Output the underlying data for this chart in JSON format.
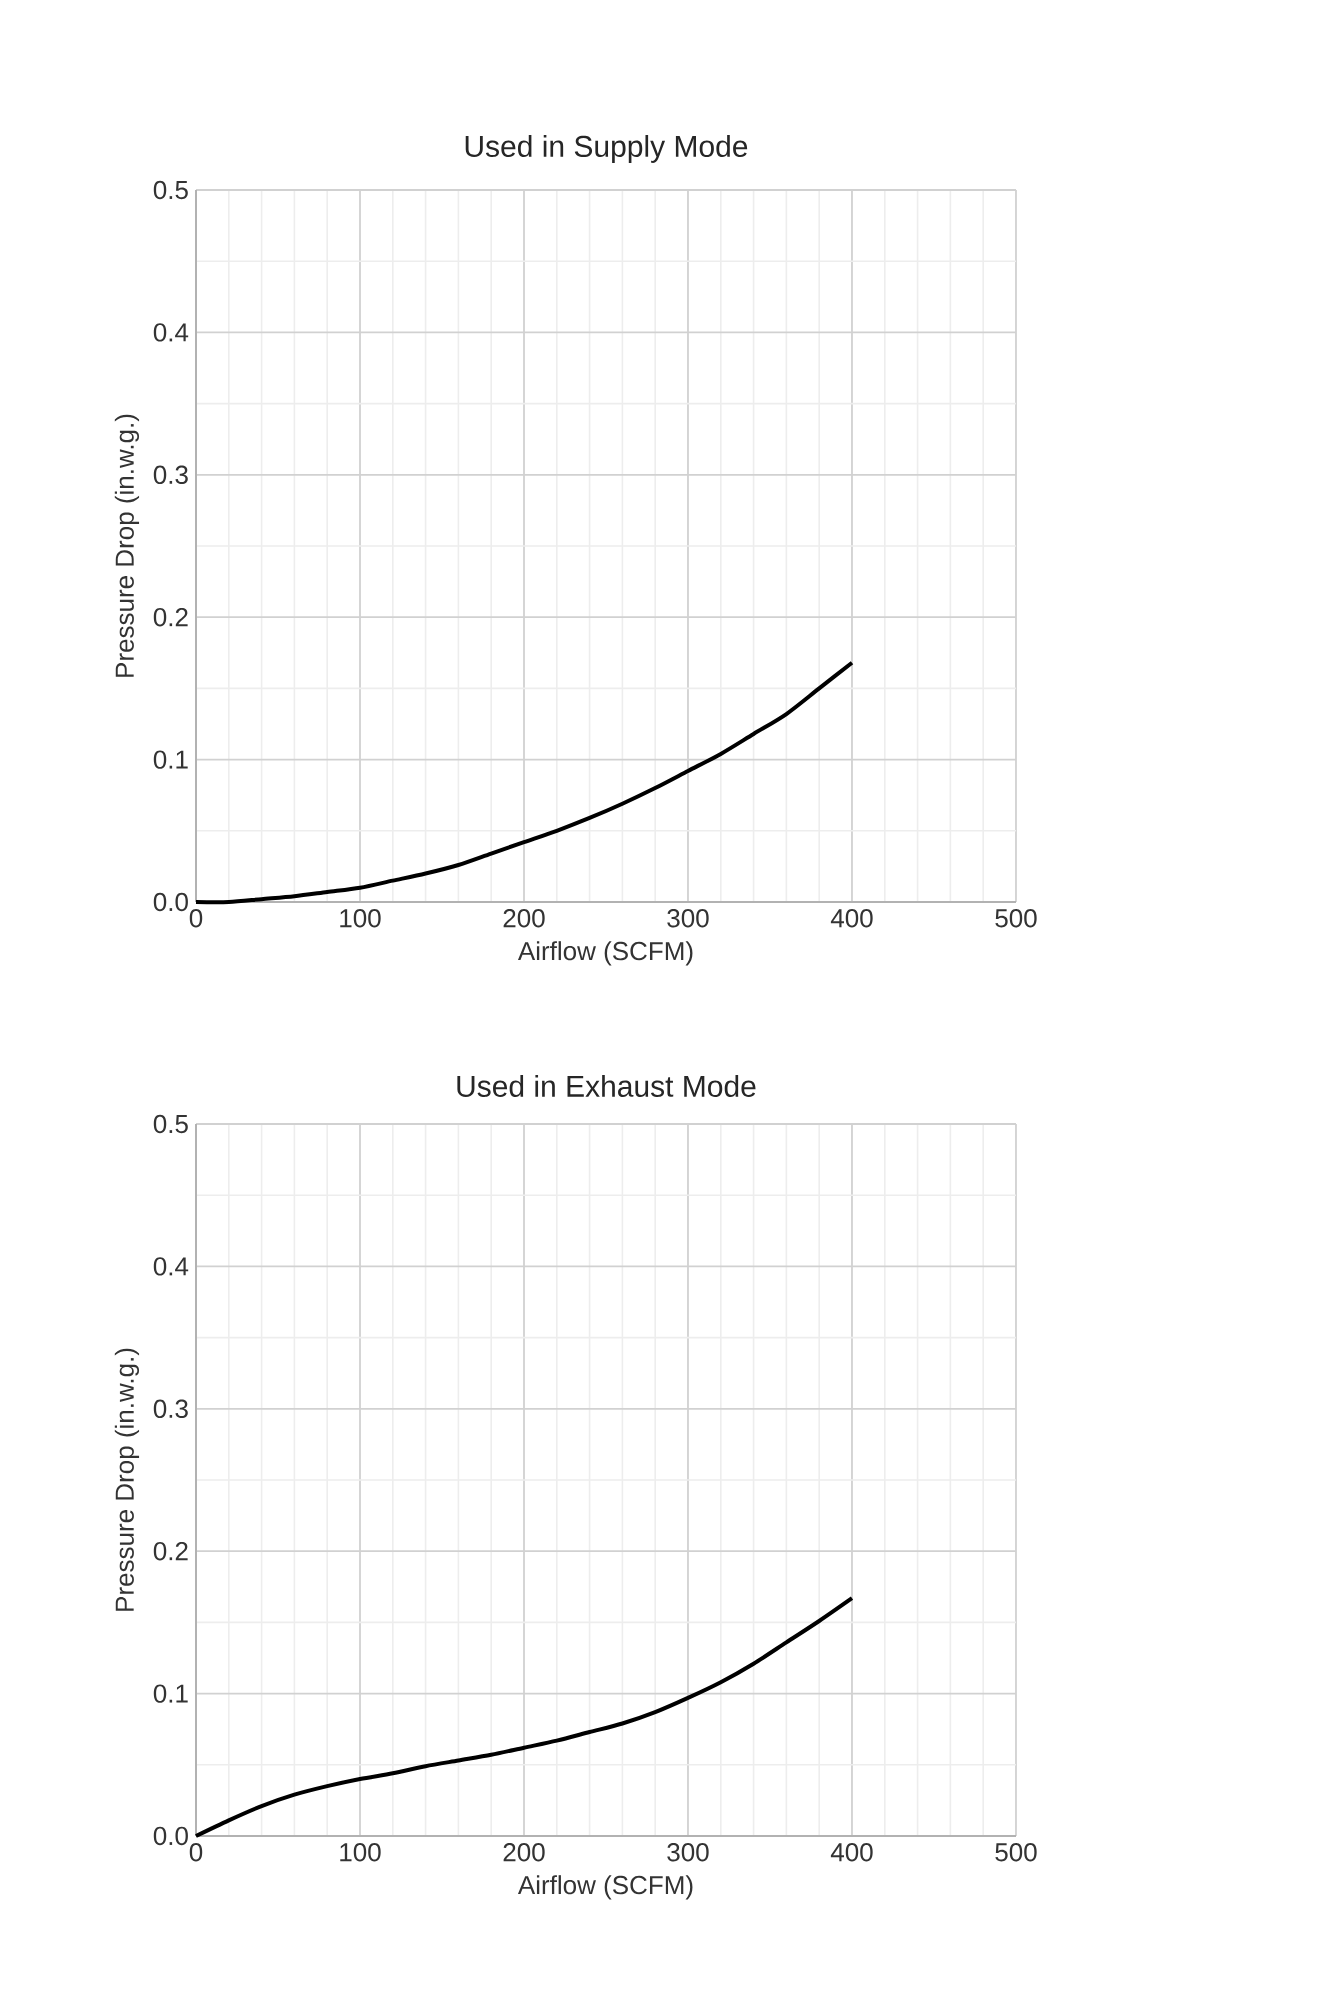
{
  "chart_data": [
    {
      "type": "line",
      "title": "Used in Supply Mode",
      "xlabel": "Airflow (SCFM)",
      "ylabel": "Pressure Drop (in.w.g.)",
      "xlim": [
        0,
        500
      ],
      "xticks": [
        0,
        100,
        200,
        300,
        400,
        500
      ],
      "ylim": [
        0,
        0.5
      ],
      "yticks": [
        {
          "value": 0,
          "label": "0.0"
        },
        0.1,
        0.2,
        0.3,
        0.4,
        0.5
      ],
      "grid": true,
      "marker": "none",
      "line_style": "solid",
      "series": [
        {
          "color": "#000000",
          "x": [
            0,
            20,
            40,
            60,
            80,
            100,
            120,
            140,
            160,
            180,
            200,
            220,
            240,
            260,
            280,
            300,
            320,
            340,
            360,
            380,
            400
          ],
          "values": [
            0,
            0.0,
            0.002,
            0.004,
            0.007,
            0.01,
            0.015,
            0.02,
            0.026,
            0.034,
            0.042,
            0.05,
            0.059,
            0.069,
            0.08,
            0.092,
            0.104,
            0.118,
            0.132,
            0.15,
            0.168
          ]
        }
      ]
    },
    {
      "type": "line",
      "title": "Used in Exhaust Mode",
      "xlabel": "Airflow (SCFM)",
      "ylabel": "Pressure Drop (in.w.g.)",
      "xlim": [
        0,
        500
      ],
      "xticks": [
        0,
        100,
        200,
        300,
        400,
        500
      ],
      "ylim": [
        0,
        0.5
      ],
      "yticks": [
        {
          "value": 0,
          "label": "0.0"
        },
        0.1,
        0.2,
        0.3,
        0.4,
        0.5
      ],
      "grid": true,
      "marker": "none",
      "line_style": "solid",
      "series": [
        {
          "color": "#000000",
          "x": [
            0,
            20,
            40,
            60,
            80,
            100,
            120,
            140,
            160,
            180,
            200,
            220,
            240,
            260,
            280,
            300,
            320,
            340,
            360,
            380,
            400
          ],
          "values": [
            0,
            0.011,
            0.021,
            0.029,
            0.035,
            0.04,
            0.044,
            0.049,
            0.053,
            0.057,
            0.062,
            0.067,
            0.073,
            0.079,
            0.087,
            0.097,
            0.108,
            0.121,
            0.136,
            0.151,
            0.167
          ]
        }
      ]
    }
  ]
}
